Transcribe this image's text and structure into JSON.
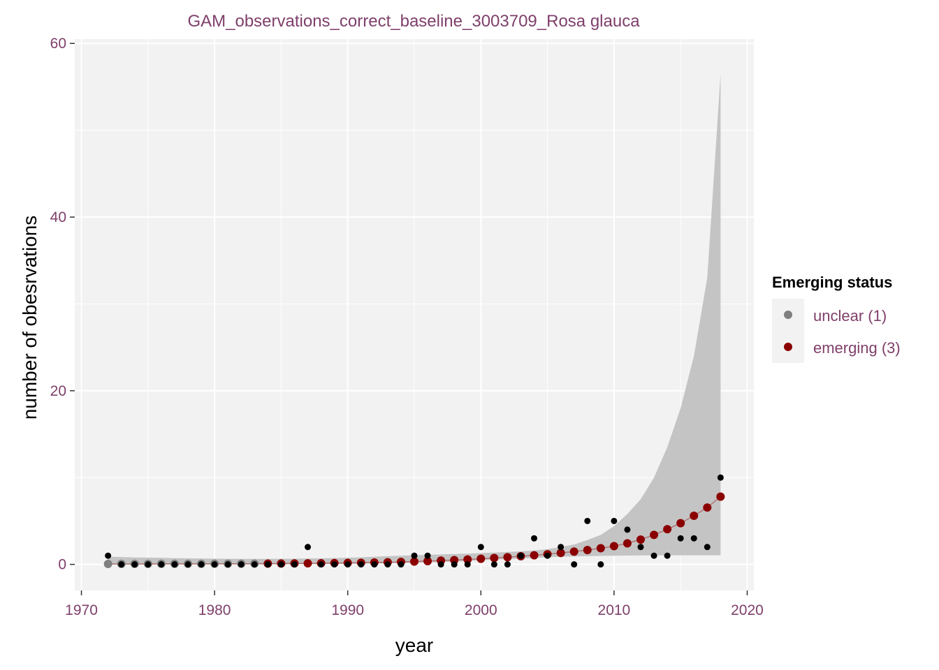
{
  "chart_data": {
    "type": "scatter",
    "title": "GAM_observations_correct_baseline_3003709_Rosa glauca",
    "xlabel": "year",
    "ylabel": "number of obesrvations",
    "xlim": [
      1969.5,
      2020.5
    ],
    "ylim": [
      -3,
      60.5
    ],
    "x_ticks": [
      1970,
      1980,
      1990,
      2000,
      2010,
      2020
    ],
    "y_ticks": [
      0,
      20,
      40,
      60
    ],
    "grid": true,
    "legend_position": "right",
    "legend_title": "Emerging status",
    "colors": {
      "panel": "#f2f2f2",
      "grid": "#ffffff",
      "band": "#c4c4c4",
      "observed": "#000000",
      "unclear": "#7f7f7f",
      "emerging": "#8b0000",
      "fit_line": "#b07070"
    },
    "observed": {
      "x": [
        1972,
        1973,
        1974,
        1975,
        1976,
        1977,
        1978,
        1979,
        1980,
        1981,
        1982,
        1983,
        1984,
        1985,
        1986,
        1987,
        1988,
        1989,
        1990,
        1991,
        1992,
        1993,
        1994,
        1995,
        1996,
        1997,
        1998,
        1999,
        2000,
        2001,
        2002,
        2003,
        2004,
        2005,
        2006,
        2007,
        2008,
        2009,
        2010,
        2011,
        2012,
        2013,
        2014,
        2015,
        2016,
        2017,
        2018
      ],
      "y": [
        1,
        0,
        0,
        0,
        0,
        0,
        0,
        0,
        0,
        0,
        0,
        0,
        0,
        0,
        0,
        2,
        0,
        0,
        0,
        0,
        0,
        0,
        0,
        1,
        1,
        0,
        0,
        0,
        2,
        0,
        0,
        1,
        3,
        1,
        2,
        0,
        5,
        0,
        5,
        4,
        2,
        1,
        1,
        3,
        3,
        2,
        10
      ]
    },
    "fitted": {
      "x": [
        1972,
        1973,
        1974,
        1975,
        1976,
        1977,
        1978,
        1979,
        1980,
        1981,
        1982,
        1983,
        1984,
        1985,
        1986,
        1987,
        1988,
        1989,
        1990,
        1991,
        1992,
        1993,
        1994,
        1995,
        1996,
        1997,
        1998,
        1999,
        2000,
        2001,
        2002,
        2003,
        2004,
        2005,
        2006,
        2007,
        2008,
        2009,
        2010,
        2011,
        2012,
        2013,
        2014,
        2015,
        2016,
        2017,
        2018
      ],
      "y": [
        0.05,
        0.05,
        0.05,
        0.05,
        0.06,
        0.06,
        0.06,
        0.06,
        0.07,
        0.07,
        0.07,
        0.08,
        0.09,
        0.1,
        0.11,
        0.12,
        0.13,
        0.15,
        0.17,
        0.19,
        0.22,
        0.25,
        0.29,
        0.33,
        0.38,
        0.44,
        0.5,
        0.57,
        0.65,
        0.74,
        0.83,
        0.94,
        1.05,
        1.17,
        1.32,
        1.47,
        1.65,
        1.86,
        2.1,
        2.43,
        2.86,
        3.4,
        4.05,
        4.75,
        5.6,
        6.55,
        7.8
      ],
      "status": [
        "unclear",
        "unclear",
        "unclear",
        "unclear",
        "unclear",
        "unclear",
        "unclear",
        "unclear",
        "unclear",
        "unclear",
        "unclear",
        "unclear",
        "emerging",
        "emerging",
        "emerging",
        "emerging",
        "emerging",
        "emerging",
        "emerging",
        "emerging",
        "emerging",
        "emerging",
        "emerging",
        "emerging",
        "emerging",
        "emerging",
        "emerging",
        "emerging",
        "emerging",
        "emerging",
        "emerging",
        "emerging",
        "emerging",
        "emerging",
        "emerging",
        "emerging",
        "emerging",
        "emerging",
        "emerging",
        "emerging",
        "emerging",
        "emerging",
        "emerging",
        "emerging",
        "emerging",
        "emerging",
        "emerging"
      ],
      "upper": [
        0.9,
        0.85,
        0.8,
        0.78,
        0.75,
        0.72,
        0.7,
        0.68,
        0.66,
        0.65,
        0.64,
        0.64,
        0.64,
        0.65,
        0.66,
        0.68,
        0.7,
        0.73,
        0.77,
        0.82,
        0.88,
        0.95,
        1.0,
        1.05,
        1.1,
        1.15,
        1.2,
        1.24,
        1.3,
        1.36,
        1.43,
        1.5,
        1.6,
        1.75,
        2.0,
        2.3,
        2.8,
        3.4,
        4.4,
        5.8,
        7.5,
        10.0,
        13.5,
        18.0,
        24.0,
        33.0,
        56.5
      ],
      "lower": [
        0,
        0,
        0,
        0,
        0,
        0,
        0,
        0,
        0,
        0,
        0,
        0,
        0.01,
        0.01,
        0.02,
        0.03,
        0.04,
        0.05,
        0.06,
        0.08,
        0.1,
        0.12,
        0.15,
        0.18,
        0.22,
        0.28,
        0.33,
        0.4,
        0.48,
        0.55,
        0.6,
        0.68,
        0.75,
        0.82,
        0.88,
        0.92,
        0.95,
        0.98,
        1.0,
        1.02,
        1.03,
        1.04,
        1.05,
        1.05,
        1.05,
        1.05,
        1.05
      ]
    },
    "legend": [
      {
        "label": "unclear (1)",
        "status": "unclear"
      },
      {
        "label": "emerging (3)",
        "status": "emerging"
      }
    ]
  }
}
